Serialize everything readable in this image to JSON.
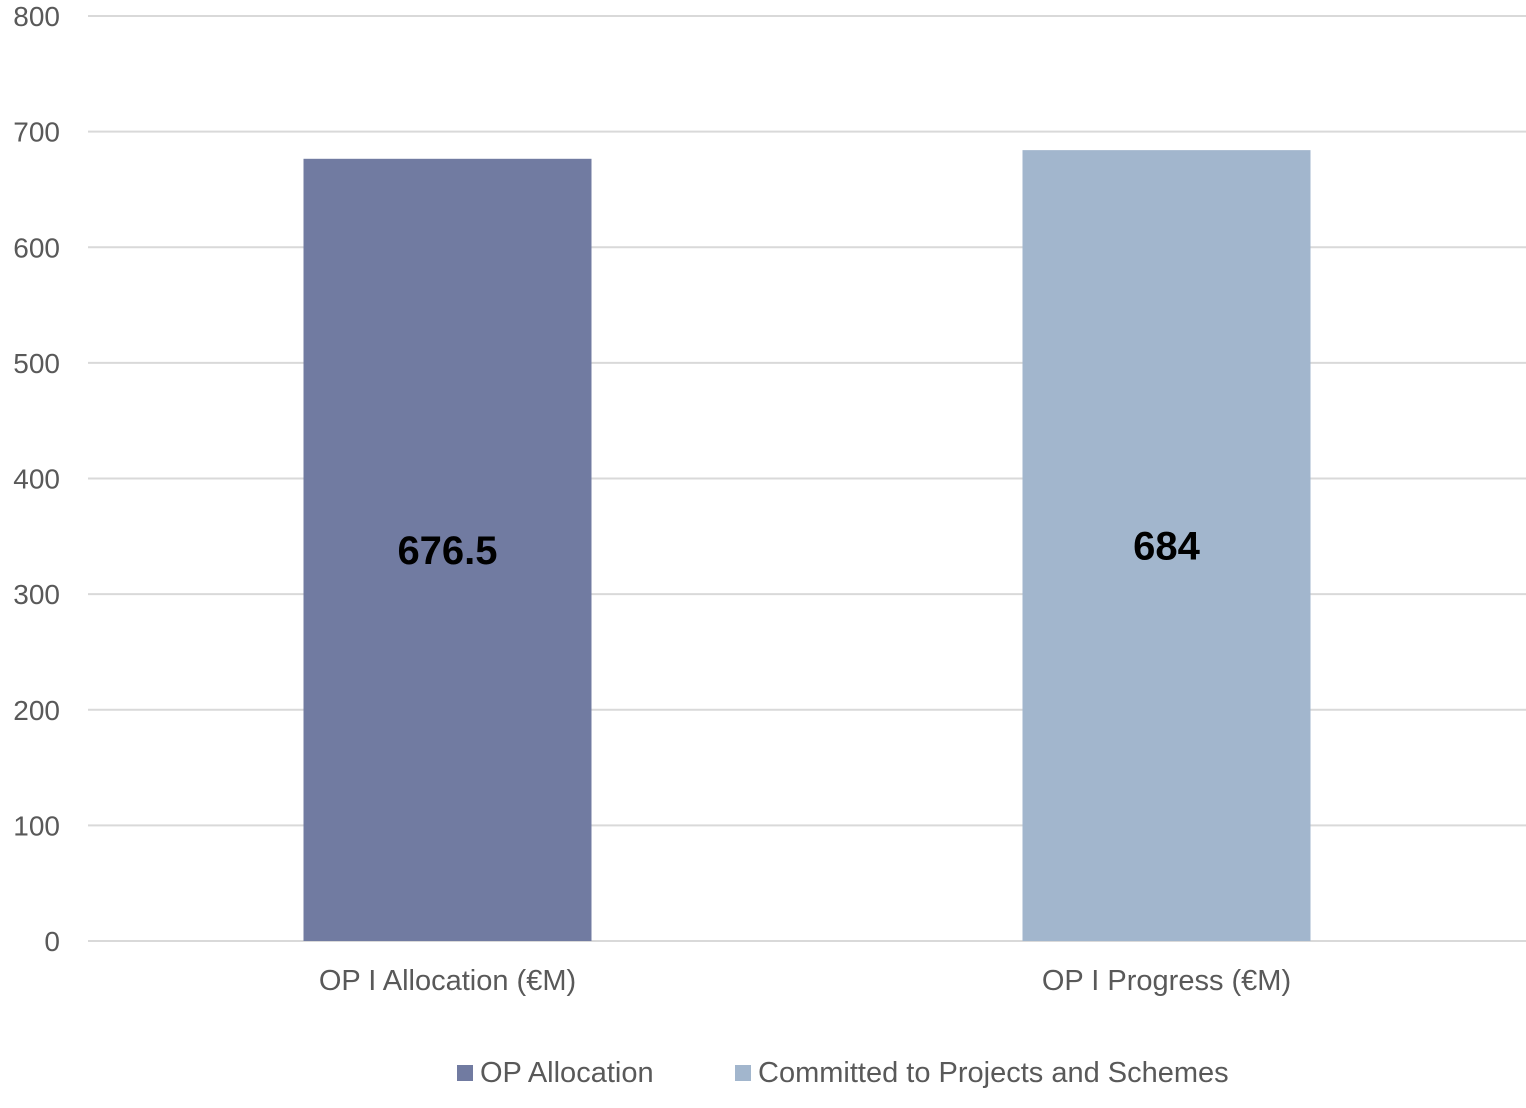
{
  "chart_data": {
    "type": "bar",
    "categories": [
      "OP I Allocation (€M)",
      "OP I Progress (€M)"
    ],
    "series": [
      {
        "name": "OP Allocation",
        "color": "#717ba1",
        "values": [
          676.5,
          null
        ],
        "labels": [
          "676.5",
          null
        ]
      },
      {
        "name": "Committed to Projects and Schemes",
        "color": "#a2b6cd",
        "values": [
          null,
          684
        ],
        "labels": [
          null,
          "684"
        ]
      }
    ],
    "ylim": [
      0,
      800
    ],
    "yticks": [
      0,
      100,
      200,
      300,
      400,
      500,
      600,
      700,
      800
    ],
    "grid": true,
    "legend_position": "bottom",
    "title": "",
    "xlabel": "",
    "ylabel": ""
  }
}
